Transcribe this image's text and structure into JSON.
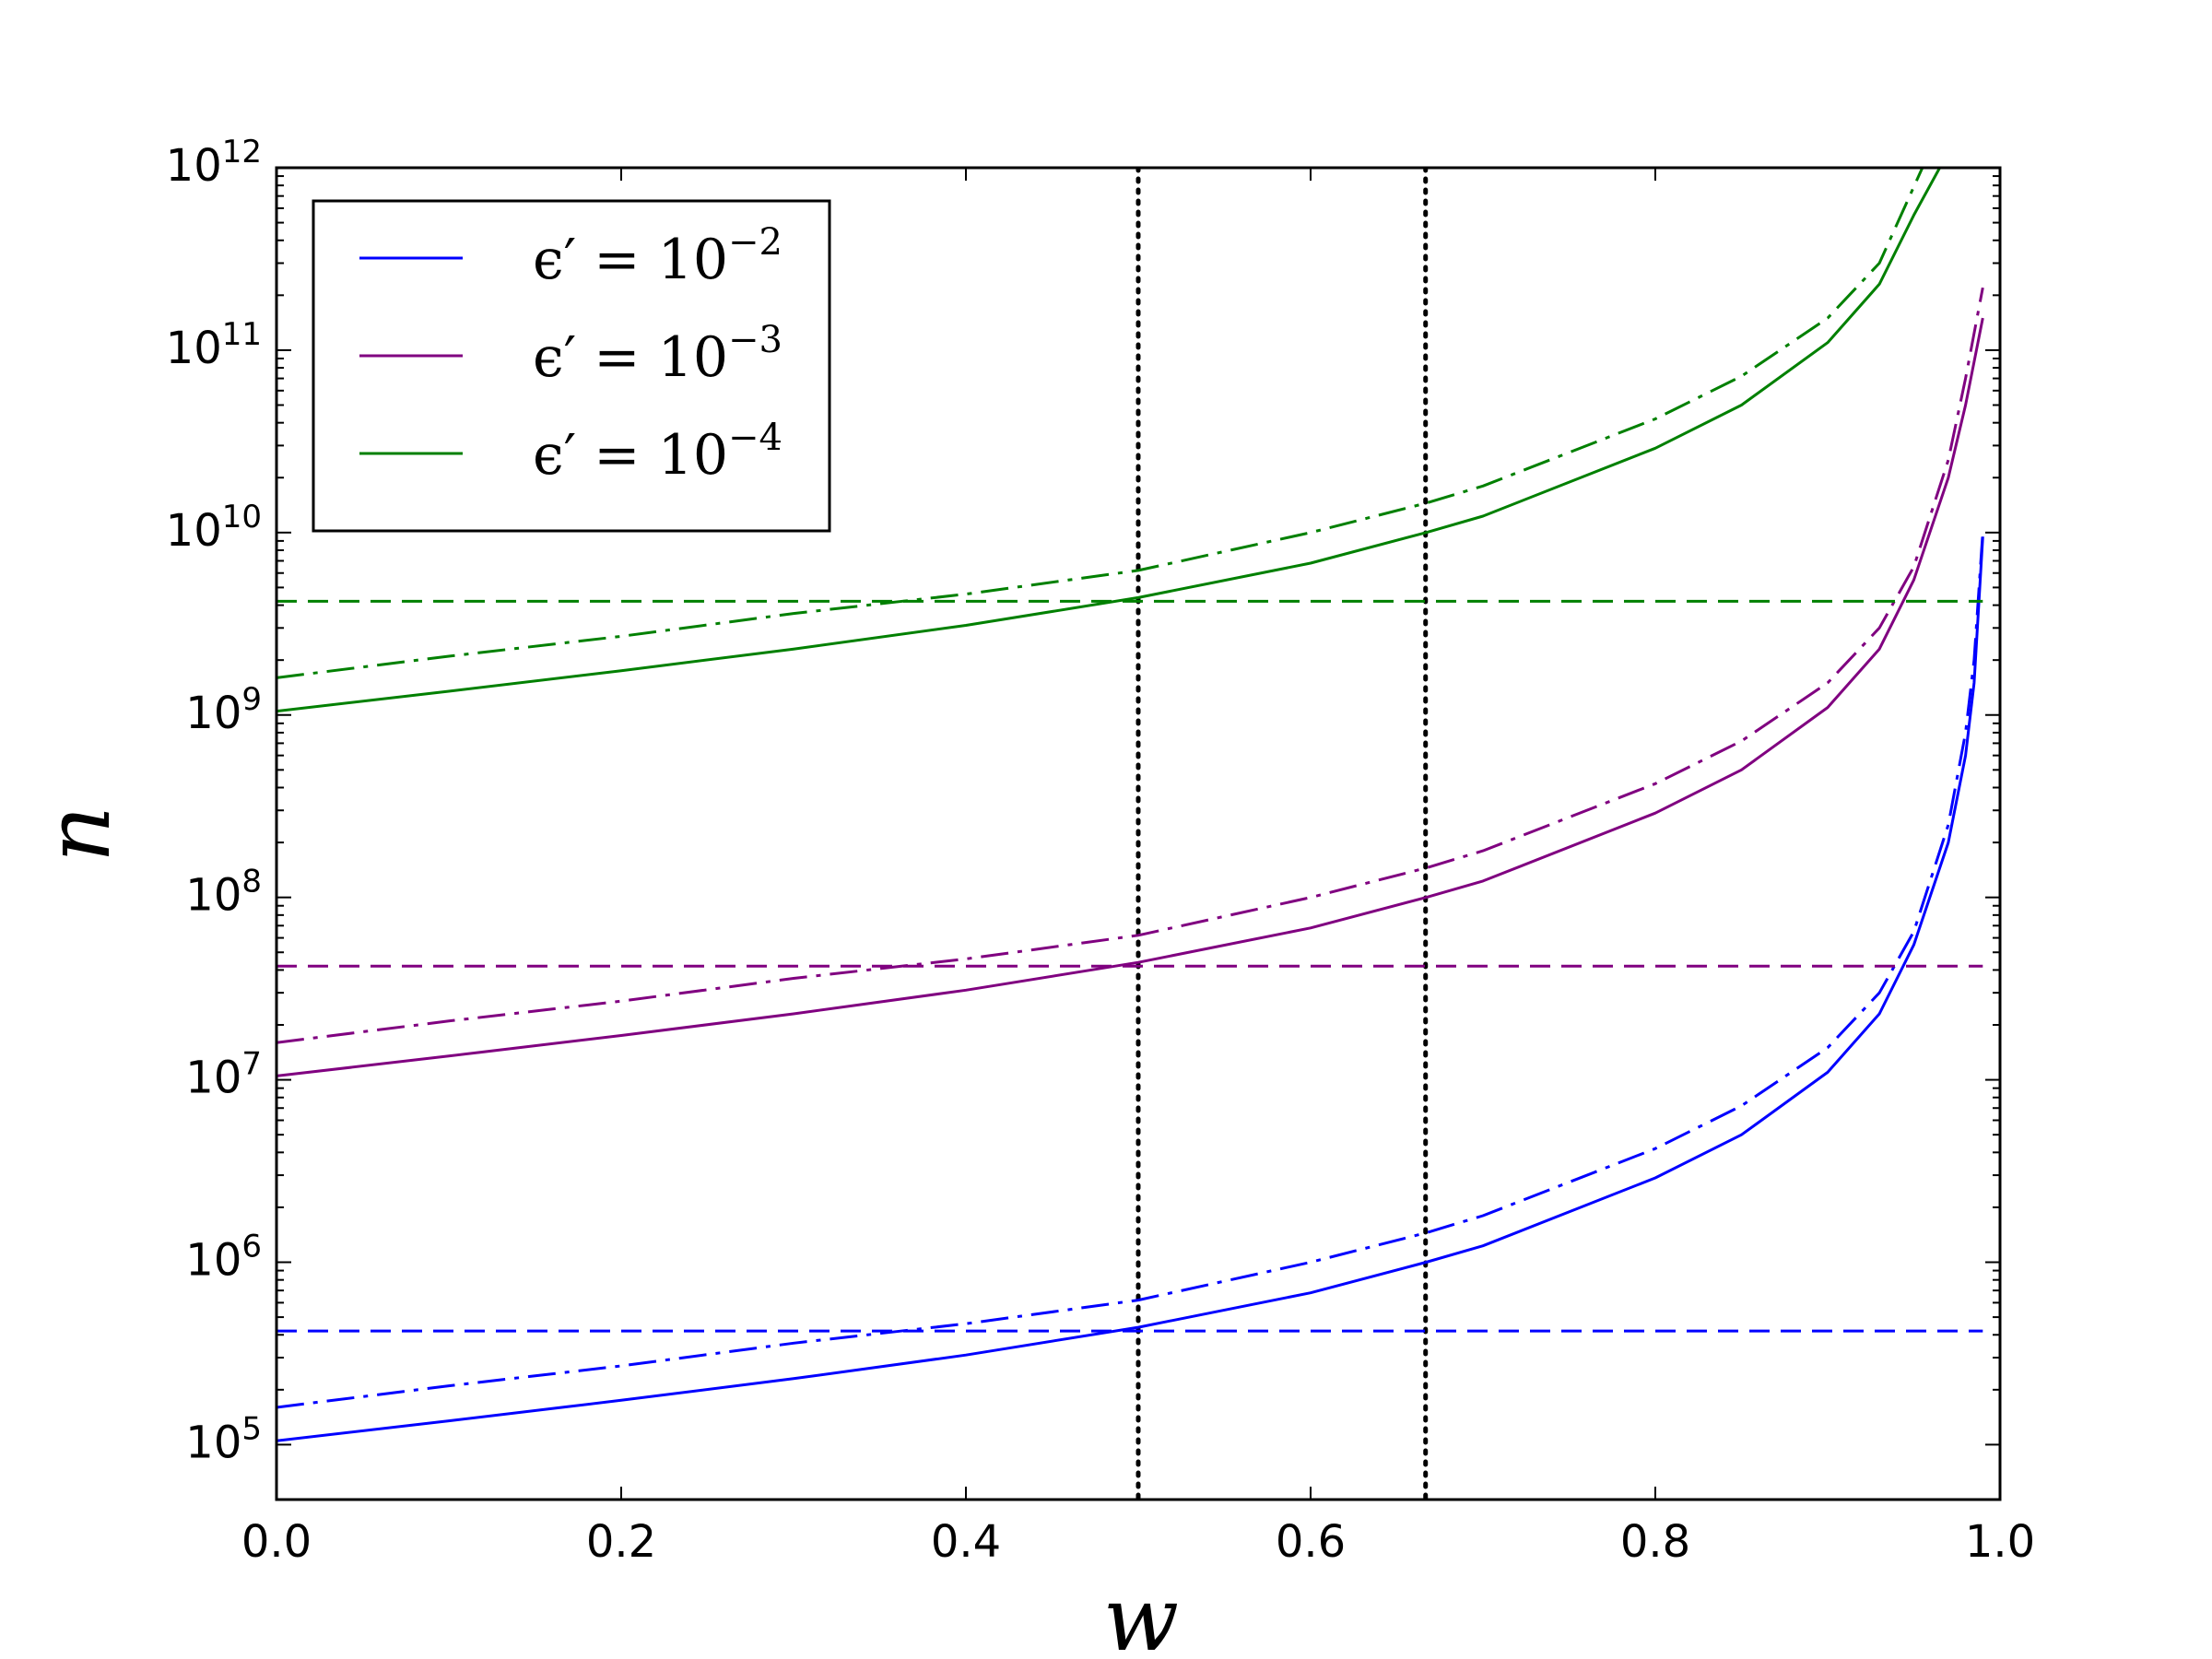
{
  "chart_data": {
    "type": "line",
    "xlabel": "w",
    "ylabel": "n",
    "xlim": [
      0.0,
      1.0
    ],
    "ylim": [
      50000,
      1000000000000
    ],
    "yscale": "log",
    "grid": false,
    "legend_position": "top-left",
    "x_ticks": [
      "0.0",
      "0.2",
      "0.4",
      "0.6",
      "0.8",
      "1.0"
    ],
    "y_ticks": [
      {
        "base": "10",
        "exp": "5"
      },
      {
        "base": "10",
        "exp": "6"
      },
      {
        "base": "10",
        "exp": "7"
      },
      {
        "base": "10",
        "exp": "8"
      },
      {
        "base": "10",
        "exp": "9"
      },
      {
        "base": "10",
        "exp": "10"
      },
      {
        "base": "10",
        "exp": "11"
      },
      {
        "base": "10",
        "exp": "12"
      }
    ],
    "legend": [
      {
        "prefix": "ϵ′ = 10",
        "exp": "−2",
        "color": "#0000ff"
      },
      {
        "prefix": "ϵ′ = 10",
        "exp": "−3",
        "color": "#800080"
      },
      {
        "prefix": "ϵ′ = 10",
        "exp": "−4",
        "color": "#008000"
      }
    ],
    "vertical_lines": [
      0.5,
      0.6667
    ],
    "families": [
      {
        "color": "#0000ff",
        "horizontal_level": 420000,
        "solid": {
          "x": [
            0.0,
            0.1,
            0.2,
            0.3,
            0.4,
            0.5,
            0.6,
            0.667,
            0.7,
            0.8,
            0.85,
            0.9,
            0.93,
            0.95,
            0.97,
            0.98,
            0.985,
            0.99
          ],
          "y": [
            105000,
            135000,
            175000,
            230000,
            310000,
            440000,
            680000,
            1000000,
            1230000,
            2900000,
            5000000,
            11000000,
            23000000,
            55000000,
            200000000,
            600000000,
            1500000000,
            9500000000
          ]
        },
        "dashdot": {
          "x": [
            0.0,
            0.1,
            0.2,
            0.3,
            0.4,
            0.5,
            0.6,
            0.667,
            0.7,
            0.8,
            0.85,
            0.9,
            0.93,
            0.95,
            0.97,
            0.98,
            0.985,
            0.99
          ],
          "y": [
            160000,
            210000,
            270000,
            360000,
            460000,
            620000,
            1000000,
            1450000,
            1800000,
            4200000,
            7200000,
            15000000,
            30000000,
            65000000,
            250000000,
            800000000,
            2000000000,
            10000000000
          ]
        }
      },
      {
        "color": "#800080",
        "horizontal_level": 42000000,
        "solid": {
          "x": [
            0.0,
            0.1,
            0.2,
            0.3,
            0.4,
            0.5,
            0.6,
            0.667,
            0.7,
            0.8,
            0.85,
            0.9,
            0.93,
            0.95,
            0.97,
            0.98,
            0.99
          ],
          "y": [
            10500000,
            13500000,
            17500000,
            23000000,
            31000000,
            44000000,
            68000000,
            100000000,
            123000000,
            290000000,
            500000000,
            1100000000,
            2300000000,
            5500000000,
            20000000000,
            50000000000,
            150000000000
          ]
        },
        "dashdot": {
          "x": [
            0.0,
            0.1,
            0.2,
            0.3,
            0.4,
            0.5,
            0.6,
            0.667,
            0.7,
            0.8,
            0.85,
            0.9,
            0.93,
            0.95,
            0.97,
            0.98,
            0.99
          ],
          "y": [
            16000000,
            21000000,
            27000000,
            36000000,
            46000000,
            62000000,
            100000000,
            145000000,
            180000000,
            420000000,
            720000000,
            1500000000,
            3000000000,
            6500000000,
            25000000000,
            70000000000,
            220000000000
          ]
        }
      },
      {
        "color": "#008000",
        "horizontal_level": 4200000000,
        "solid": {
          "x": [
            0.0,
            0.1,
            0.2,
            0.3,
            0.4,
            0.5,
            0.6,
            0.667,
            0.7,
            0.8,
            0.85,
            0.9,
            0.93,
            0.95,
            0.965
          ],
          "y": [
            1050000000,
            1350000000,
            1750000000,
            2300000000,
            3100000000,
            4400000000,
            6800000000,
            10000000000,
            12300000000,
            29000000000,
            50000000000,
            110000000000,
            230000000000,
            550000000000,
            1000000000000
          ]
        },
        "dashdot": {
          "x": [
            0.0,
            0.1,
            0.2,
            0.3,
            0.4,
            0.5,
            0.6,
            0.667,
            0.7,
            0.8,
            0.85,
            0.9,
            0.93,
            0.955
          ],
          "y": [
            1600000000,
            2100000000,
            2700000000,
            3600000000,
            4600000000,
            6200000000,
            10000000000,
            14500000000,
            18000000000,
            42000000000,
            72000000000,
            150000000000,
            300000000000,
            1000000000000
          ]
        }
      }
    ]
  }
}
